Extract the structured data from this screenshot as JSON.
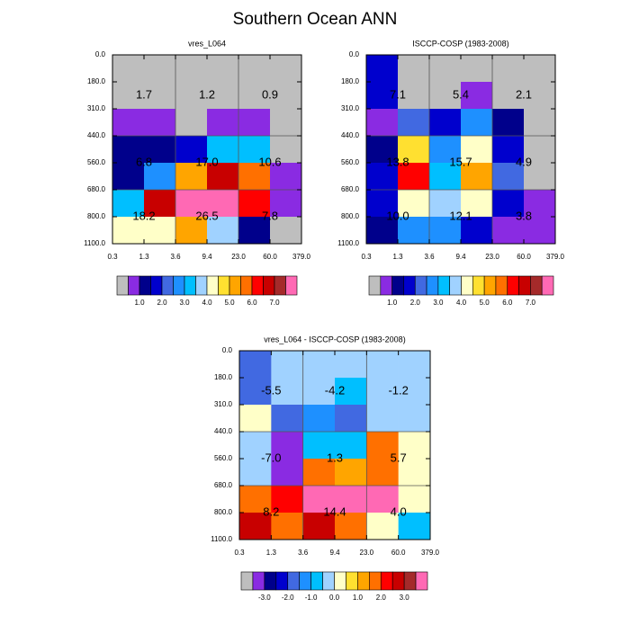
{
  "title": "Southern Ocean ANN",
  "chart_data": [
    {
      "type": "heatmap",
      "title": "vres_L064",
      "x_labels": [
        "0.3",
        "1.3",
        "3.6",
        "9.4",
        "23.0",
        "60.0",
        "379.0"
      ],
      "y_labels": [
        "0.0",
        "180.0",
        "310.0",
        "440.0",
        "560.0",
        "680.0",
        "800.0",
        "1100.0"
      ],
      "values": [
        [
          0.25,
          0.25,
          0.25,
          0.25,
          0.25,
          0.25
        ],
        [
          0.25,
          0.25,
          0.25,
          0.25,
          0.25,
          0.25
        ],
        [
          0.75,
          0.75,
          0.25,
          0.75,
          0.75,
          0.25
        ],
        [
          1.25,
          1.25,
          1.75,
          3.25,
          3.25,
          0.25
        ],
        [
          1.25,
          2.75,
          5.25,
          6.75,
          5.75,
          0.75
        ],
        [
          3.25,
          6.75,
          7.75,
          7.75,
          6.25,
          0.75
        ],
        [
          4.25,
          4.25,
          5.25,
          3.75,
          1.25,
          0.25
        ]
      ],
      "cell_labels": [
        [
          "1.7",
          "1.2",
          "0.9"
        ],
        [
          "6.8",
          "17.0",
          "10.6"
        ],
        [
          "18.2",
          "26.5",
          "7.8"
        ]
      ],
      "colorbar": {
        "levels": [
          0.5,
          1,
          1.5,
          2,
          2.5,
          3,
          3.5,
          4,
          4.5,
          5,
          5.5,
          6,
          6.5,
          7,
          7.5
        ],
        "colors": [
          "#bebebe",
          "#8a2be2",
          "#00008b",
          "#0000cd",
          "#4169e1",
          "#1e90ff",
          "#00bfff",
          "#a0d2ff",
          "#ffffc8",
          "#ffe030",
          "#ffa500",
          "#ff7000",
          "#ff0000",
          "#c80000",
          "#a52a2a",
          "#ff69b4"
        ],
        "ticks": [
          {
            "value": 1,
            "label": "1.0"
          },
          {
            "value": 2,
            "label": "2.0"
          },
          {
            "value": 3,
            "label": "3.0"
          },
          {
            "value": 4,
            "label": "4.0"
          },
          {
            "value": 5,
            "label": "5.0"
          },
          {
            "value": 6,
            "label": "6.0"
          },
          {
            "value": 7,
            "label": "7.0"
          }
        ]
      }
    },
    {
      "type": "heatmap",
      "title": "ISCCP-COSP (1983-2008)",
      "x_labels": [
        "0.3",
        "1.3",
        "3.6",
        "9.4",
        "23.0",
        "60.0",
        "379.0"
      ],
      "y_labels": [
        "0.0",
        "180.0",
        "310.0",
        "440.0",
        "560.0",
        "680.0",
        "800.0",
        "1100.0"
      ],
      "values": [
        [
          1.75,
          0.25,
          0.25,
          0.25,
          0.25,
          0.25
        ],
        [
          1.75,
          0.25,
          0.25,
          0.75,
          0.25,
          0.25
        ],
        [
          0.75,
          2.25,
          1.75,
          2.75,
          1.25,
          0.25
        ],
        [
          1.25,
          4.75,
          2.75,
          4.25,
          1.75,
          0.25
        ],
        [
          1.75,
          6.25,
          3.25,
          5.25,
          2.25,
          0.25
        ],
        [
          1.75,
          4.25,
          3.75,
          4.25,
          1.75,
          0.75
        ],
        [
          1.25,
          2.75,
          2.75,
          1.75,
          0.75,
          0.75
        ]
      ],
      "cell_labels": [
        [
          "7.1",
          "5.4",
          "2.1"
        ],
        [
          "13.8",
          "15.7",
          "4.9"
        ],
        [
          "10.0",
          "12.1",
          "3.8"
        ]
      ],
      "colorbar": {
        "levels": [
          0.5,
          1,
          1.5,
          2,
          2.5,
          3,
          3.5,
          4,
          4.5,
          5,
          5.5,
          6,
          6.5,
          7,
          7.5
        ],
        "colors": [
          "#bebebe",
          "#8a2be2",
          "#00008b",
          "#0000cd",
          "#4169e1",
          "#1e90ff",
          "#00bfff",
          "#a0d2ff",
          "#ffffc8",
          "#ffe030",
          "#ffa500",
          "#ff7000",
          "#ff0000",
          "#c80000",
          "#a52a2a",
          "#ff69b4"
        ],
        "ticks": [
          {
            "value": 1,
            "label": "1.0"
          },
          {
            "value": 2,
            "label": "2.0"
          },
          {
            "value": 3,
            "label": "3.0"
          },
          {
            "value": 4,
            "label": "4.0"
          },
          {
            "value": 5,
            "label": "5.0"
          },
          {
            "value": 6,
            "label": "6.0"
          },
          {
            "value": 7,
            "label": "7.0"
          }
        ]
      }
    },
    {
      "type": "heatmap",
      "title": "vres_L064 - ISCCP-COSP (1983-2008)",
      "x_labels": [
        "0.3",
        "1.3",
        "3.6",
        "9.4",
        "23.0",
        "60.0",
        "379.0"
      ],
      "y_labels": [
        "0.0",
        "180.0",
        "310.0",
        "440.0",
        "560.0",
        "680.0",
        "800.0",
        "1100.0"
      ],
      "values": [
        [
          -1.75,
          -0.25,
          -0.25,
          -0.25,
          -0.25,
          -0.25
        ],
        [
          -1.75,
          -0.25,
          -0.25,
          -0.75,
          -0.25,
          -0.25
        ],
        [
          0.25,
          -1.75,
          -1.25,
          -1.75,
          -0.25,
          -0.25
        ],
        [
          -0.25,
          -3.25,
          -0.75,
          -0.75,
          1.75,
          0.25
        ],
        [
          -0.25,
          -3.25,
          1.75,
          1.25,
          1.75,
          0.25
        ],
        [
          1.75,
          2.25,
          3.75,
          3.75,
          3.75,
          0.25
        ],
        [
          2.75,
          1.75,
          2.75,
          1.75,
          0.25,
          -0.75
        ]
      ],
      "cell_labels": [
        [
          "-5.5",
          "-4.2",
          "-1.2"
        ],
        [
          "-7.0",
          "1.3",
          "5.7"
        ],
        [
          "8.2",
          "14.4",
          "4.0"
        ]
      ],
      "colorbar": {
        "levels": [
          -3.5,
          -3,
          -2.5,
          -2,
          -1.5,
          -1,
          -0.5,
          0,
          0.5,
          1,
          1.5,
          2,
          2.5,
          3,
          3.5
        ],
        "colors": [
          "#bebebe",
          "#8a2be2",
          "#00008b",
          "#0000cd",
          "#4169e1",
          "#1e90ff",
          "#00bfff",
          "#a0d2ff",
          "#ffffc8",
          "#ffe030",
          "#ffa500",
          "#ff7000",
          "#ff0000",
          "#c80000",
          "#a52a2a",
          "#ff69b4"
        ],
        "ticks": [
          {
            "value": -3,
            "label": "-3.0"
          },
          {
            "value": -2,
            "label": "-2.0"
          },
          {
            "value": -1,
            "label": "-1.0"
          },
          {
            "value": 0,
            "label": "0.0"
          },
          {
            "value": 1,
            "label": "1.0"
          },
          {
            "value": 2,
            "label": "2.0"
          },
          {
            "value": 3,
            "label": "3.0"
          }
        ]
      }
    }
  ]
}
